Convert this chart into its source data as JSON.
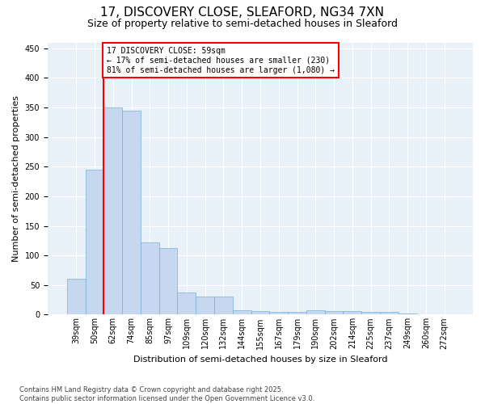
{
  "title_line1": "17, DISCOVERY CLOSE, SLEAFORD, NG34 7XN",
  "title_line2": "Size of property relative to semi-detached houses in Sleaford",
  "xlabel": "Distribution of semi-detached houses by size in Sleaford",
  "ylabel": "Number of semi-detached properties",
  "footnote": "Contains HM Land Registry data © Crown copyright and database right 2025.\nContains public sector information licensed under the Open Government Licence v3.0.",
  "bar_labels": [
    "39sqm",
    "50sqm",
    "62sqm",
    "74sqm",
    "85sqm",
    "97sqm",
    "109sqm",
    "120sqm",
    "132sqm",
    "144sqm",
    "155sqm",
    "167sqm",
    "179sqm",
    "190sqm",
    "202sqm",
    "214sqm",
    "225sqm",
    "237sqm",
    "249sqm",
    "260sqm",
    "272sqm"
  ],
  "bar_values": [
    60,
    245,
    350,
    345,
    122,
    113,
    38,
    30,
    30,
    8,
    6,
    4,
    4,
    7,
    6,
    6,
    5,
    4,
    2,
    1,
    1
  ],
  "bar_color": "#c5d8f0",
  "bar_edge_color": "#7bafd4",
  "property_sqm": 59,
  "property_line_x": 1.5,
  "pct_smaller": 17,
  "pct_larger": 81,
  "count_smaller": 230,
  "count_larger": 1080,
  "annotation_line1": "17 DISCOVERY CLOSE: 59sqm",
  "annotation_line2": "← 17% of semi-detached houses are smaller (230)",
  "annotation_line3": "81% of semi-detached houses are larger (1,080) →",
  "ylim": [
    0,
    460
  ],
  "yticks": [
    0,
    50,
    100,
    150,
    200,
    250,
    300,
    350,
    400,
    450
  ],
  "bg_color": "#e8f0f8",
  "title_fontsize": 11,
  "subtitle_fontsize": 9,
  "annotation_fontsize": 7,
  "axis_label_fontsize": 8,
  "tick_fontsize": 7
}
